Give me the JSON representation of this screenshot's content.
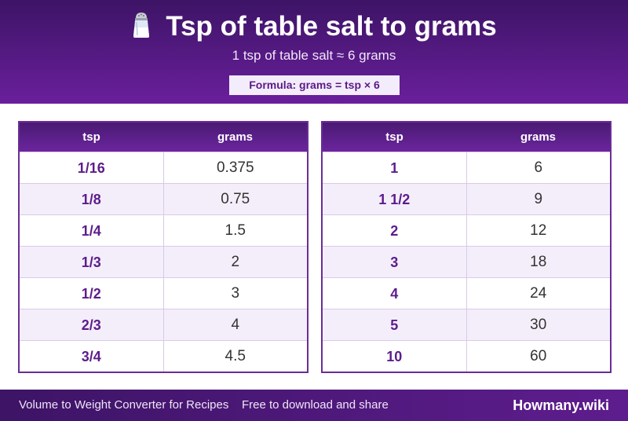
{
  "header": {
    "title": "Tsp of table salt to grams",
    "icon": "salt-shaker-icon",
    "subtitle": "1 tsp of table salt ≈ 6 grams",
    "formula": "Formula: grams = tsp × 6"
  },
  "table_left": {
    "headers": [
      "tsp",
      "grams"
    ],
    "rows": [
      [
        "1/16",
        "0.375"
      ],
      [
        "1/8",
        "0.75"
      ],
      [
        "1/4",
        "1.5"
      ],
      [
        "1/3",
        "2"
      ],
      [
        "1/2",
        "3"
      ],
      [
        "2/3",
        "4"
      ],
      [
        "3/4",
        "4.5"
      ]
    ]
  },
  "table_right": {
    "headers": [
      "tsp",
      "grams"
    ],
    "rows": [
      [
        "1",
        "6"
      ],
      [
        "1 1/2",
        "9"
      ],
      [
        "2",
        "12"
      ],
      [
        "3",
        "18"
      ],
      [
        "4",
        "24"
      ],
      [
        "5",
        "30"
      ],
      [
        "10",
        "60"
      ]
    ]
  },
  "footer": {
    "left_text": "Volume to Weight Converter for Recipes",
    "middle_text": "Free to download and share",
    "brand": "Howmany.wiki"
  },
  "colors": {
    "accent": "#6a1f9c",
    "header_dark": "#3d1466",
    "alt_row": "#f4eefb",
    "tsp_text": "#5c1d8a"
  }
}
